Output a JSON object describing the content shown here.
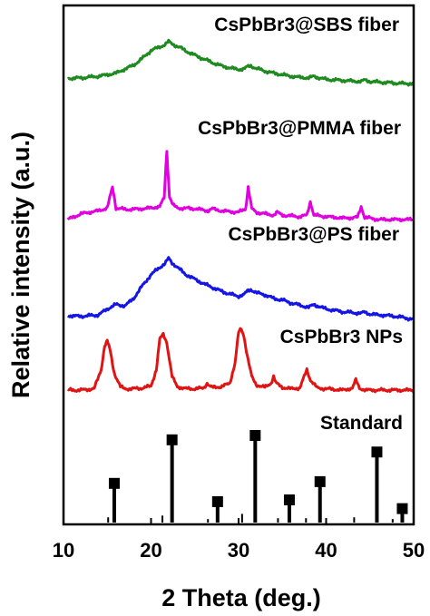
{
  "chart_data": {
    "type": "line",
    "xlabel": "2 Theta (deg.)",
    "ylabel": "Relative intensity (a.u.)",
    "xlim": [
      10,
      50
    ],
    "x_ticks": [
      10,
      20,
      30,
      40,
      50
    ],
    "grid": false,
    "legend": "inline labels above each trace",
    "series": [
      {
        "name": "CsPbBr3@SBS fiber",
        "color": "#1f8a1f",
        "x": [
          10.5,
          12,
          14,
          16,
          18,
          19,
          20,
          21,
          21.6,
          22,
          22.4,
          22.8,
          23.4,
          24,
          25,
          26,
          27,
          28,
          29,
          30,
          30.6,
          31,
          31.4,
          32,
          33,
          34,
          35,
          36,
          37,
          38,
          38.6,
          39,
          40,
          41,
          42,
          43,
          44,
          44.4,
          45,
          46,
          47,
          48,
          49,
          50
        ],
        "y": [
          0.2,
          0.21,
          0.24,
          0.3,
          0.45,
          0.58,
          0.73,
          0.8,
          0.84,
          0.9,
          0.86,
          0.82,
          0.78,
          0.72,
          0.64,
          0.57,
          0.5,
          0.44,
          0.4,
          0.37,
          0.38,
          0.42,
          0.44,
          0.39,
          0.34,
          0.3,
          0.27,
          0.24,
          0.22,
          0.21,
          0.24,
          0.22,
          0.18,
          0.17,
          0.16,
          0.15,
          0.14,
          0.17,
          0.14,
          0.13,
          0.12,
          0.11,
          0.1,
          0.1
        ]
      },
      {
        "name": "CsPbBr3@PMMA fiber",
        "color": "#e000e0",
        "x": [
          10.5,
          12,
          14,
          15,
          15.6,
          16,
          17,
          18,
          20,
          21,
          21.5,
          21.8,
          22.1,
          22.5,
          23,
          25,
          26.5,
          27,
          28,
          30,
          30.8,
          31.1,
          31.5,
          32,
          34,
          34.4,
          35,
          37,
          37.8,
          38.2,
          38.6,
          40,
          42,
          43.6,
          44,
          44.4,
          46,
          48,
          49,
          50
        ],
        "y": [
          0.0,
          0.08,
          0.12,
          0.16,
          0.45,
          0.16,
          0.14,
          0.14,
          0.16,
          0.18,
          0.3,
          0.95,
          0.32,
          0.2,
          0.16,
          0.15,
          0.12,
          0.15,
          0.12,
          0.1,
          0.15,
          0.45,
          0.15,
          0.1,
          0.06,
          0.1,
          0.06,
          0.04,
          0.06,
          0.25,
          0.06,
          0.04,
          0.02,
          0.03,
          0.18,
          0.03,
          0.0,
          0.0,
          0.0,
          0.0
        ]
      },
      {
        "name": "CsPbBr3@PS fiber",
        "color": "#1515e6",
        "x": [
          10.5,
          12,
          14,
          15,
          16,
          17,
          18,
          19,
          20,
          21,
          21.6,
          22,
          22.4,
          22.8,
          23.4,
          24,
          25,
          26,
          27,
          28,
          29,
          30,
          30.6,
          31,
          31.4,
          32,
          33,
          34,
          35,
          36,
          37,
          38,
          38.6,
          39,
          40,
          41,
          42,
          43,
          44,
          44.4,
          45,
          46,
          47,
          48,
          49,
          50
        ],
        "y": [
          0.05,
          0.04,
          0.06,
          0.14,
          0.2,
          0.18,
          0.28,
          0.45,
          0.6,
          0.7,
          0.75,
          0.82,
          0.76,
          0.72,
          0.66,
          0.6,
          0.54,
          0.48,
          0.43,
          0.38,
          0.34,
          0.31,
          0.33,
          0.38,
          0.4,
          0.36,
          0.33,
          0.28,
          0.26,
          0.22,
          0.19,
          0.16,
          0.2,
          0.18,
          0.14,
          0.12,
          0.1,
          0.09,
          0.08,
          0.1,
          0.07,
          0.06,
          0.05,
          0.04,
          0.02,
          0.0
        ]
      },
      {
        "name": "CsPbBr3 NPs",
        "color": "#e01414",
        "x": [
          10.5,
          12,
          13.5,
          14.3,
          14.7,
          15,
          15.3,
          15.8,
          16.5,
          17,
          18,
          19,
          20,
          20.6,
          21,
          21.4,
          21.8,
          22.4,
          23,
          24,
          25,
          26,
          26.4,
          26.8,
          27,
          28,
          29,
          29.6,
          30,
          30.3,
          30.6,
          31,
          31.5,
          32,
          33,
          33.7,
          34,
          34.3,
          35,
          36,
          37,
          37.5,
          37.8,
          38.2,
          39,
          40,
          41,
          42,
          43,
          43.4,
          43.8,
          44.5,
          45,
          46,
          47,
          48,
          49,
          50
        ],
        "y": [
          0.0,
          0.0,
          0.02,
          0.3,
          0.65,
          0.72,
          0.6,
          0.25,
          0.05,
          0.02,
          0.02,
          0.03,
          0.06,
          0.3,
          0.75,
          0.82,
          0.7,
          0.2,
          0.05,
          0.02,
          0.02,
          0.03,
          0.1,
          0.05,
          0.04,
          0.05,
          0.1,
          0.4,
          0.85,
          0.9,
          0.8,
          0.5,
          0.2,
          0.08,
          0.04,
          0.1,
          0.2,
          0.1,
          0.04,
          0.02,
          0.03,
          0.2,
          0.3,
          0.15,
          0.03,
          0.02,
          0.01,
          0.0,
          0.03,
          0.15,
          0.03,
          0.0,
          0.0,
          0.0,
          0.0,
          0.0,
          0.0,
          0.0
        ]
      },
      {
        "name": "Standard",
        "color": "#000000",
        "type": "stick",
        "x": [
          15.1,
          15.8,
          21.3,
          22.4,
          26.5,
          27.6,
          30.4,
          31.9,
          34.5,
          35.8,
          37.7,
          39.3,
          43.2,
          45.8,
          47.6,
          48.7
        ],
        "y": [
          0.06,
          0.45,
          0.08,
          0.95,
          0.04,
          0.24,
          0.1,
          1.0,
          0.05,
          0.26,
          0.05,
          0.47,
          0.06,
          0.81,
          0.04,
          0.16
        ]
      }
    ]
  }
}
